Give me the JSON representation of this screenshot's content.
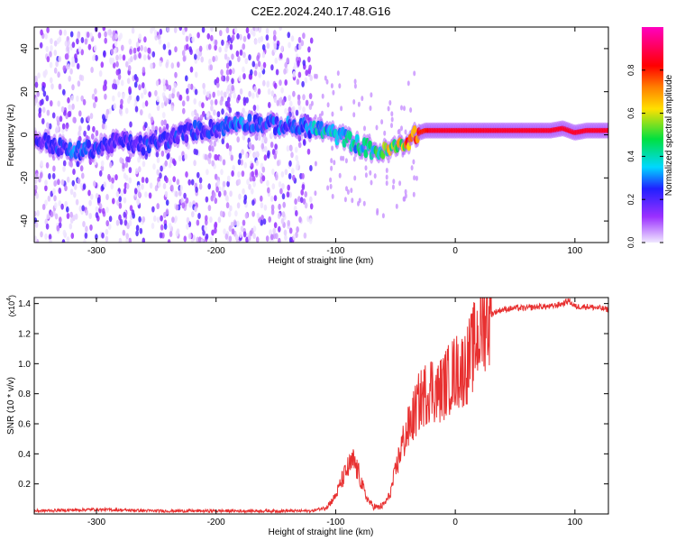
{
  "title": "C2E2.2024.240.17.48.G16",
  "chart_data": [
    {
      "type": "heatmap",
      "xlabel": "Height of straight line (km)",
      "ylabel": "Frequency (Hz)",
      "xlim": [
        -352,
        128
      ],
      "ylim": [
        -50,
        50
      ],
      "xticks": [
        -300,
        -200,
        -100,
        0,
        100
      ],
      "xtick_labels": [
        "-300",
        "-200",
        "-100",
        "0",
        "100"
      ],
      "yticks": [
        -40,
        -20,
        0,
        20,
        40
      ],
      "ytick_labels": [
        "-40",
        "-20",
        "0",
        "20",
        "40"
      ],
      "colorbar": {
        "label": "Normalized spectral amplitude",
        "range": [
          0,
          1
        ],
        "ticks": [
          0.0,
          0.2,
          0.4,
          0.6,
          0.8
        ],
        "tick_labels": [
          "0.0",
          "0.2",
          "0.4",
          "0.6",
          "0.8"
        ],
        "colors": [
          "#f0e8ff",
          "#9b30ff",
          "#2020ff",
          "#00d8ff",
          "#00e040",
          "#ffe000",
          "#ff8000",
          "#ff0000",
          "#ff00c0"
        ]
      },
      "ridge": {
        "x": [
          -350,
          -320,
          -300,
          -280,
          -260,
          -240,
          -220,
          -200,
          -180,
          -160,
          -140,
          -120,
          -110,
          -100,
          -90,
          -80,
          -70,
          -60,
          -55,
          -50,
          -45,
          -40,
          -35,
          -30,
          -25,
          -20,
          -10,
          0,
          20,
          40,
          60,
          80,
          90,
          100,
          110,
          128
        ],
        "y": [
          -2,
          -8,
          -6,
          -3,
          -5,
          -2,
          2,
          3,
          6,
          5,
          4,
          3,
          2,
          0,
          -2,
          -5,
          -7,
          -8,
          -7,
          -6,
          -5,
          -3,
          -1,
          1,
          2,
          2,
          2,
          2,
          2,
          2,
          2,
          2,
          3,
          1,
          2,
          2
        ],
        "amplitude": [
          0.2,
          0.3,
          0.25,
          0.2,
          0.25,
          0.25,
          0.25,
          0.25,
          0.3,
          0.25,
          0.3,
          0.35,
          0.4,
          0.35,
          0.4,
          0.4,
          0.45,
          0.55,
          0.6,
          0.65,
          0.7,
          0.75,
          0.8,
          0.85,
          0.85,
          0.9,
          0.9,
          0.9,
          0.9,
          0.9,
          0.9,
          0.9,
          0.9,
          0.9,
          0.9,
          0.9
        ]
      }
    },
    {
      "type": "line",
      "xlabel": "Height of straight line (km)",
      "ylabel": "SNR (10 * v/v)",
      "y_multiplier": "(x10",
      "y_exponent": "4",
      "xlim": [
        -352,
        128
      ],
      "ylim": [
        0,
        1.44
      ],
      "xticks": [
        -300,
        -200,
        -100,
        0,
        100
      ],
      "xtick_labels": [
        "-300",
        "-200",
        "-100",
        "0",
        "100"
      ],
      "yticks": [
        0.2,
        0.4,
        0.6,
        0.8,
        1.0,
        1.2,
        1.4
      ],
      "ytick_labels": [
        "0.2",
        "0.4",
        "0.6",
        "0.8",
        "1.0",
        "1.2",
        "1.4"
      ],
      "color": "#e83030",
      "series": [
        {
          "x": [
            -352,
            -300,
            -250,
            -200,
            -150,
            -120,
            -110,
            -105,
            -100,
            -95,
            -90,
            -85,
            -80,
            -75,
            -70,
            -65,
            -60,
            -55,
            -50,
            -45,
            -40,
            -35,
            -30,
            -25,
            -20,
            -15,
            -10,
            -5,
            0,
            5,
            10,
            15,
            20,
            25,
            30,
            35,
            40,
            50,
            60,
            70,
            80,
            90,
            95,
            100,
            110,
            120,
            128
          ],
          "y": [
            0.02,
            0.03,
            0.02,
            0.02,
            0.02,
            0.02,
            0.04,
            0.07,
            0.12,
            0.22,
            0.3,
            0.35,
            0.25,
            0.12,
            0.06,
            0.04,
            0.06,
            0.12,
            0.28,
            0.45,
            0.55,
            0.65,
            0.75,
            0.8,
            0.85,
            0.8,
            0.85,
            0.9,
            0.95,
            0.95,
            1.0,
            1.1,
            1.2,
            1.3,
            1.33,
            1.35,
            1.36,
            1.37,
            1.37,
            1.38,
            1.38,
            1.4,
            1.42,
            1.38,
            1.38,
            1.37,
            1.36
          ]
        }
      ]
    }
  ]
}
